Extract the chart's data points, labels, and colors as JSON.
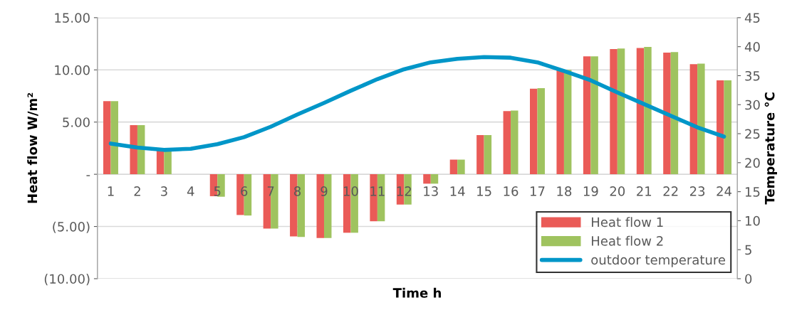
{
  "chart_data": {
    "type": "bar",
    "xlabel": "Time h",
    "ylabel": "Heat flow W/m²",
    "y2label": "Temperature °C",
    "categories": [
      "1",
      "2",
      "3",
      "4",
      "5",
      "6",
      "7",
      "8",
      "9",
      "10",
      "11",
      "12",
      "13",
      "14",
      "15",
      "16",
      "17",
      "18",
      "19",
      "20",
      "21",
      "22",
      "23",
      "24"
    ],
    "series": [
      {
        "name": "Heat flow 1",
        "color": "#ea5b57",
        "values": [
          7.0,
          4.7,
          2.3,
          0,
          -2.1,
          -3.9,
          -5.2,
          -5.95,
          -6.1,
          -5.6,
          -4.5,
          -2.9,
          -0.9,
          1.4,
          3.75,
          6.05,
          8.2,
          9.95,
          11.3,
          12.0,
          12.1,
          11.65,
          10.55,
          9.0
        ]
      },
      {
        "name": "Heat flow 2",
        "color": "#9fc35f",
        "values": [
          7.0,
          4.7,
          2.3,
          0,
          -2.15,
          -3.95,
          -5.2,
          -6.0,
          -6.1,
          -5.6,
          -4.5,
          -2.9,
          -0.9,
          1.4,
          3.75,
          6.1,
          8.25,
          10.0,
          11.3,
          12.05,
          12.2,
          11.7,
          10.6,
          9.0
        ]
      },
      {
        "name": "outdoor temperature",
        "type": "line",
        "axis": "y2",
        "color": "#0096c8",
        "values": [
          23.3,
          22.6,
          22.2,
          22.4,
          23.2,
          24.4,
          26.2,
          28.3,
          30.3,
          32.4,
          34.4,
          36.1,
          37.3,
          37.9,
          38.2,
          38.1,
          37.3,
          35.8,
          34.2,
          32.1,
          30.1,
          28.1,
          26.1,
          24.5
        ]
      }
    ],
    "ylim": [
      -10,
      15
    ],
    "yticks": [
      {
        "value": -10,
        "label": "(10.00)"
      },
      {
        "value": -5,
        "label": "(5.00)"
      },
      {
        "value": 0,
        "label": "-"
      },
      {
        "value": 5,
        "label": "5.00"
      },
      {
        "value": 10,
        "label": "10.00"
      },
      {
        "value": 15,
        "label": "15.00"
      }
    ],
    "y2lim": [
      0,
      45
    ],
    "y2ticks": [
      0,
      5,
      10,
      15,
      20,
      25,
      30,
      35,
      40,
      45
    ],
    "grid": "y",
    "legend": "bottom right",
    "marker": "none",
    "line_style": "solid"
  }
}
